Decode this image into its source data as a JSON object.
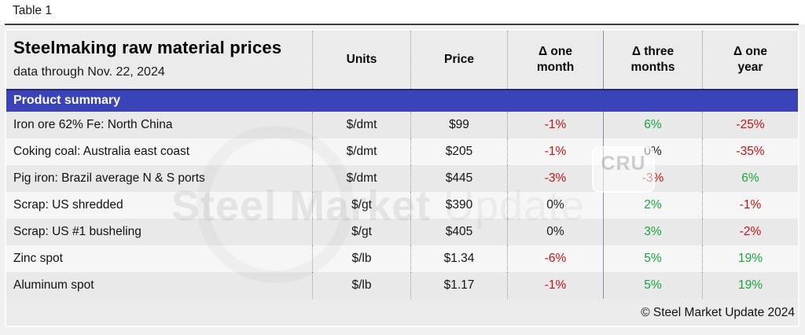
{
  "page": {
    "table_label": "Table 1",
    "copyright": "© Steel Market Update 2024"
  },
  "table": {
    "title": "Steelmaking raw material prices",
    "subtitle": "data through Nov. 22, 2024",
    "columns": [
      "Units",
      "Price",
      "Δ one\nmonth",
      "Δ three\nmonths",
      "Δ one\nyear"
    ],
    "section_header": "Product summary",
    "rows": [
      {
        "product": "Iron ore 62% Fe: North China",
        "units": "$/dmt",
        "price": "$99",
        "d1m": "-1%",
        "d3m": "6%",
        "d1y": "-25%"
      },
      {
        "product": "Coking coal: Australia east coast",
        "units": "$/dmt",
        "price": "$205",
        "d1m": "-1%",
        "d3m": "0%",
        "d1y": "-35%"
      },
      {
        "product": "Pig iron: Brazil average N & S ports",
        "units": "$/dmt",
        "price": "$445",
        "d1m": "-3%",
        "d3m": "-3%",
        "d1y": "6%"
      },
      {
        "product": "Scrap: US shredded",
        "units": "$/gt",
        "price": "$390",
        "d1m": "0%",
        "d3m": "2%",
        "d1y": "-1%"
      },
      {
        "product": "Scrap: US #1 busheling",
        "units": "$/gt",
        "price": "$405",
        "d1m": "0%",
        "d3m": "3%",
        "d1y": "-2%"
      },
      {
        "product": "Zinc spot",
        "units": "$/lb",
        "price": "$1.34",
        "d1m": "-6%",
        "d3m": "5%",
        "d1y": "19%"
      },
      {
        "product": "Aluminum spot",
        "units": "$/lb",
        "price": "$1.17",
        "d1m": "-1%",
        "d3m": "5%",
        "d1y": "19%"
      }
    ]
  },
  "watermark": {
    "brand_bold": "Steel Market ",
    "brand_light": "Update",
    "cru": "CRU"
  },
  "colors": {
    "negative": "#c01414",
    "positive": "#17a53a",
    "neutral": "#1a1a1a",
    "band_blue": "#3a43b8"
  }
}
